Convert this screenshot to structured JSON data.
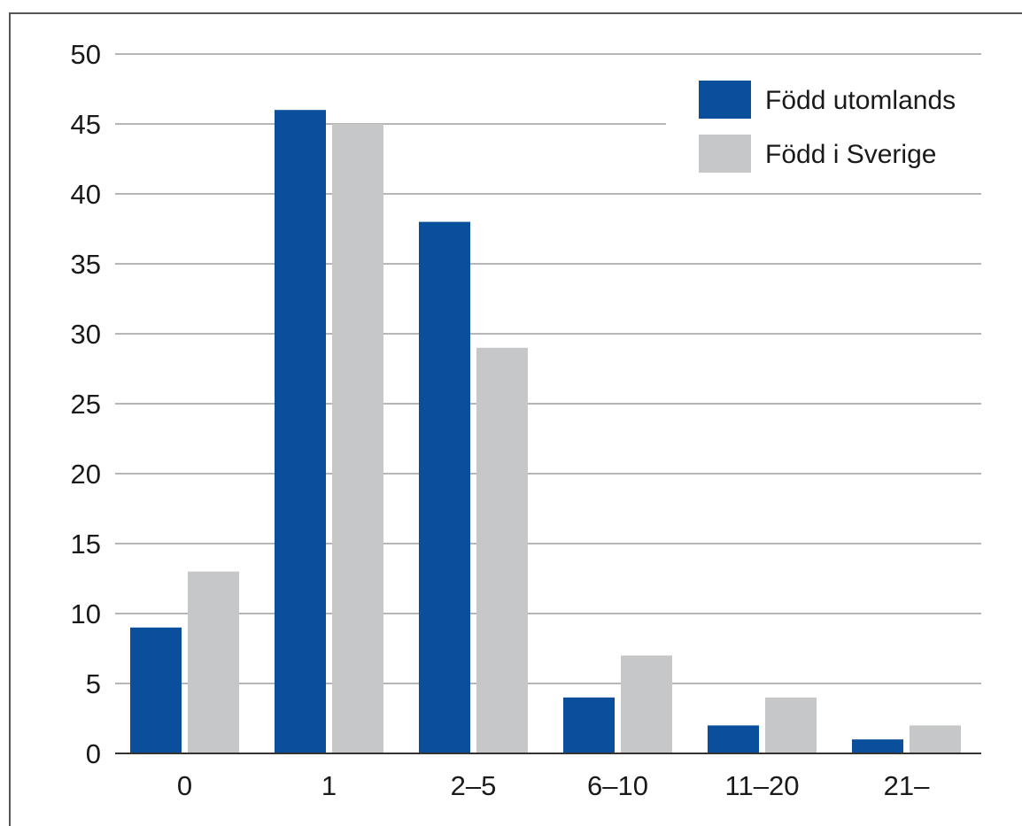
{
  "chart_data": {
    "type": "bar",
    "title": "",
    "xlabel": "",
    "ylabel": "",
    "categories": [
      "0",
      "1",
      "2–5",
      "6–10",
      "11–20",
      "21–"
    ],
    "ylim": [
      0,
      50
    ],
    "yticks": [
      "0",
      "5",
      "10",
      "15",
      "20",
      "25",
      "30",
      "35",
      "40",
      "45",
      "50"
    ],
    "grid": true,
    "legend_position": "top-right",
    "series": [
      {
        "name": "Född utomlands",
        "color": "#0a4f9c",
        "values": [
          9,
          46,
          38,
          4,
          2,
          1
        ]
      },
      {
        "name": "Född i Sverige",
        "color": "#c6c7c9",
        "values": [
          13,
          45,
          29,
          7,
          4,
          2
        ]
      }
    ]
  }
}
